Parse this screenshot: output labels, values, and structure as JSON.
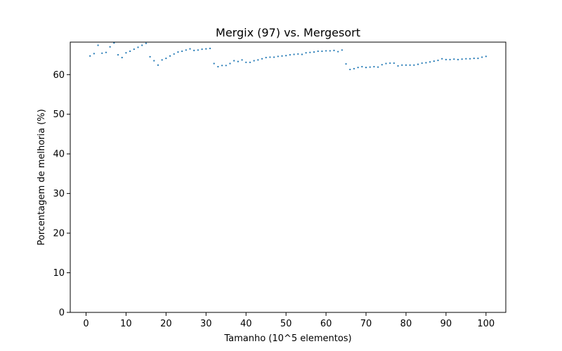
{
  "chart_data": {
    "type": "scatter",
    "title": "Mergix (97) vs. Mergesort",
    "xlabel": "Tamanho (10^5 elementos)",
    "ylabel": "Porcentagem de melhoria (%)",
    "xlim": [
      -3.95,
      104.95
    ],
    "ylim": [
      0,
      68.2
    ],
    "xticks": [
      0,
      10,
      20,
      30,
      40,
      50,
      60,
      70,
      80,
      90,
      100
    ],
    "yticks": [
      0,
      10,
      20,
      30,
      40,
      50,
      60
    ],
    "grid": false,
    "marker_color": "#1f77b4",
    "series": [
      {
        "x": [
          1,
          2,
          3,
          4,
          5,
          6,
          7,
          8,
          9,
          10,
          11,
          12,
          13,
          14,
          15,
          16,
          17,
          18,
          19,
          20,
          21,
          22,
          23,
          24,
          25,
          26,
          27,
          28,
          29,
          30,
          31,
          32,
          33,
          34,
          35,
          36,
          37,
          38,
          39,
          40,
          41,
          42,
          43,
          44,
          45,
          46,
          47,
          48,
          49,
          50,
          51,
          52,
          53,
          54,
          55,
          56,
          57,
          58,
          59,
          60,
          61,
          62,
          63,
          64,
          65,
          66,
          67,
          68,
          69,
          70,
          71,
          72,
          73,
          74,
          75,
          76,
          77,
          78,
          79,
          80,
          81,
          82,
          83,
          84,
          85,
          86,
          87,
          88,
          89,
          90,
          91,
          92,
          93,
          94,
          95,
          96,
          97,
          98,
          99,
          100
        ],
        "y": [
          64.7,
          65.3,
          67.4,
          65.4,
          65.6,
          67.0,
          68.0,
          65.0,
          64.3,
          65.5,
          65.9,
          66.4,
          66.9,
          67.4,
          67.9,
          64.5,
          63.5,
          62.4,
          63.7,
          64.1,
          64.7,
          65.2,
          65.7,
          65.9,
          66.2,
          66.5,
          66.1,
          66.2,
          66.4,
          66.5,
          66.6,
          62.8,
          62.0,
          62.3,
          62.3,
          62.8,
          63.5,
          63.3,
          63.7,
          63.1,
          63.1,
          63.5,
          63.7,
          64.0,
          64.3,
          64.4,
          64.4,
          64.6,
          64.7,
          64.8,
          65.0,
          65.1,
          65.2,
          65.1,
          65.5,
          65.6,
          65.7,
          65.9,
          65.9,
          66.0,
          66.0,
          66.1,
          65.8,
          66.2,
          62.7,
          61.3,
          61.5,
          61.8,
          62.0,
          61.8,
          61.9,
          62.0,
          61.9,
          62.5,
          62.8,
          62.9,
          62.9,
          62.2,
          62.4,
          62.4,
          62.4,
          62.4,
          62.6,
          62.9,
          63.0,
          63.2,
          63.4,
          63.6,
          64.0,
          63.8,
          63.8,
          63.9,
          63.8,
          63.9,
          64.0,
          64.0,
          64.1,
          64.1,
          64.4,
          64.6
        ]
      }
    ]
  }
}
